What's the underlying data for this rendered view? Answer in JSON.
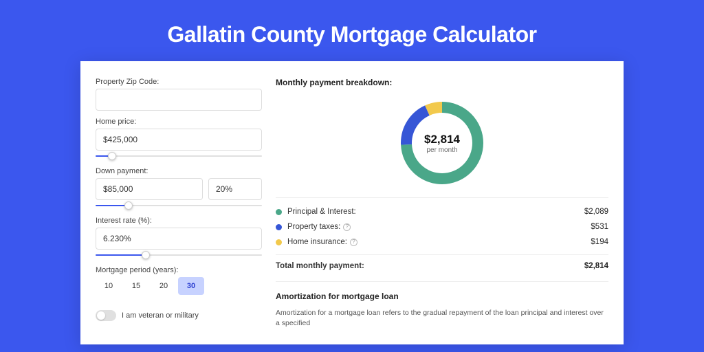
{
  "page": {
    "background_color": "#3b57ee",
    "title": "Gallatin County Mortgage Calculator"
  },
  "form": {
    "zip": {
      "label": "Property Zip Code:",
      "value": ""
    },
    "home_price": {
      "label": "Home price:",
      "value": "$425,000",
      "slider_percent": 10
    },
    "down_payment": {
      "label": "Down payment:",
      "amount": "$85,000",
      "percent": "20%",
      "slider_percent": 20
    },
    "interest": {
      "label": "Interest rate (%):",
      "value": "6.230%",
      "slider_percent": 30
    },
    "period": {
      "label": "Mortgage period (years):",
      "options": [
        "10",
        "15",
        "20",
        "30"
      ],
      "selected": "30"
    },
    "veteran": {
      "label": "I am veteran or military",
      "checked": false
    }
  },
  "breakdown": {
    "title": "Monthly payment breakdown:",
    "center_value": "$2,814",
    "center_sub": "per month",
    "donut": {
      "type": "donut",
      "size": 130,
      "ring_width": 16,
      "segments": [
        {
          "label": "Principal & Interest:",
          "value": "$2,089",
          "color": "#4aa789",
          "fraction": 0.742
        },
        {
          "label": "Property taxes:",
          "value": "$531",
          "color": "#3656d6",
          "fraction": 0.189,
          "info": true
        },
        {
          "label": "Home insurance:",
          "value": "$194",
          "color": "#f2c94c",
          "fraction": 0.069,
          "info": true
        }
      ]
    },
    "total": {
      "label": "Total monthly payment:",
      "value": "$2,814"
    }
  },
  "amortization": {
    "title": "Amortization for mortgage loan",
    "text": "Amortization for a mortgage loan refers to the gradual repayment of the loan principal and interest over a specified"
  }
}
